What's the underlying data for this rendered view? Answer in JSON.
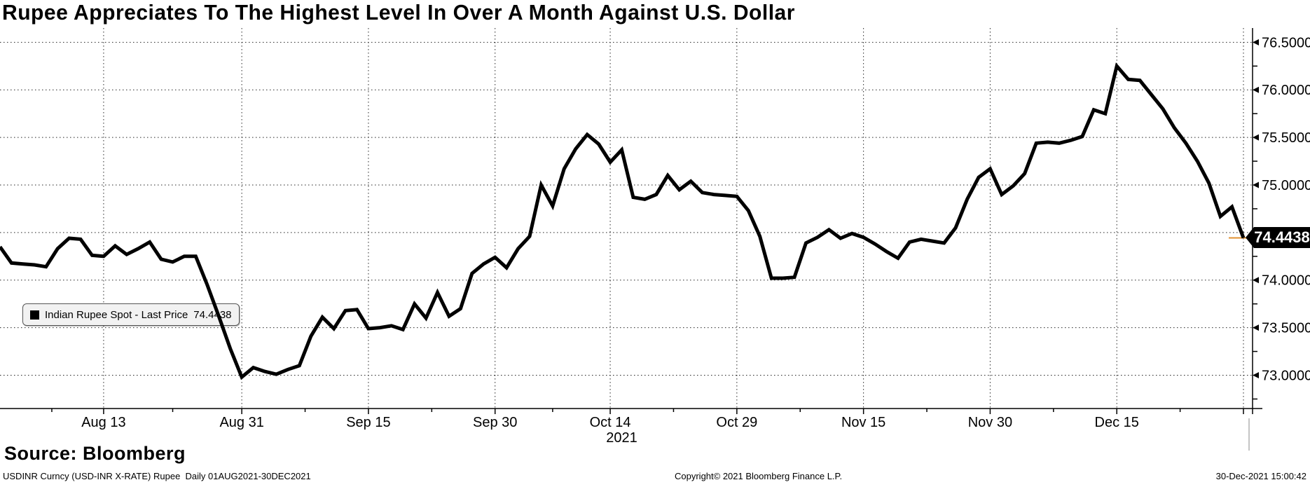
{
  "header": {
    "title": "Rupee Appreciates To The Highest Level In Over A Month Against U.S. Dollar"
  },
  "legend": {
    "label": "Indian Rupee Spot - Last Price",
    "value": "74.4438",
    "swatch_color": "#000000"
  },
  "price_tag": {
    "value": "74.4438",
    "bg": "#000000",
    "fg": "#ffffff",
    "connector_color": "#e09132"
  },
  "source": {
    "label": "Source: Bloomberg"
  },
  "footer": {
    "left": "USDINR Curncy (USD-INR X-RATE) Rupee  Daily 01AUG2021-30DEC2021",
    "center": "Copyright© 2021 Bloomberg Finance L.P.",
    "right": "30-Dec-2021 15:00:42"
  },
  "chart_data": {
    "type": "line",
    "title": "Indian Rupee Spot (USD-INR X-RATE), daily closes 01AUG2021-30DEC2021",
    "series_name": "Indian Rupee Spot - Last Price",
    "line_color": "#000000",
    "grid": "dotted",
    "legend_position": "left-middle",
    "ylim": [
      72.65,
      76.65
    ],
    "y_ticks": [
      73.0,
      73.5,
      74.0,
      74.5,
      75.0,
      75.5,
      76.0,
      76.5
    ],
    "y_minor_ticks": [
      72.75,
      73.25,
      73.75,
      74.25,
      74.75,
      75.25,
      75.75,
      76.25
    ],
    "year_label": "2021",
    "last_price": 74.4438,
    "x_ticks": [
      {
        "label": "Aug 13",
        "index": 9
      },
      {
        "label": "Aug 31",
        "index": 21
      },
      {
        "label": "Sep 15",
        "index": 32
      },
      {
        "label": "Sep 30",
        "index": 43
      },
      {
        "label": "Oct 14",
        "index": 53
      },
      {
        "label": "Oct 29",
        "index": 64
      },
      {
        "label": "Nov 15",
        "index": 75
      },
      {
        "label": "Nov 30",
        "index": 86
      },
      {
        "label": "Dec 15",
        "index": 97
      },
      {
        "label": "",
        "index": 108
      }
    ],
    "x": [
      "Aug 2",
      "Aug 3",
      "Aug 4",
      "Aug 5",
      "Aug 6",
      "Aug 9",
      "Aug 10",
      "Aug 11",
      "Aug 12",
      "Aug 13",
      "Aug 16",
      "Aug 17",
      "Aug 18",
      "Aug 19",
      "Aug 20",
      "Aug 23",
      "Aug 24",
      "Aug 25",
      "Aug 26",
      "Aug 27",
      "Aug 30",
      "Aug 31",
      "Sep 1",
      "Sep 2",
      "Sep 3",
      "Sep 6",
      "Sep 7",
      "Sep 8",
      "Sep 9",
      "Sep 10",
      "Sep 13",
      "Sep 14",
      "Sep 15",
      "Sep 16",
      "Sep 17",
      "Sep 20",
      "Sep 21",
      "Sep 22",
      "Sep 23",
      "Sep 24",
      "Sep 27",
      "Sep 28",
      "Sep 29",
      "Sep 30",
      "Oct 1",
      "Oct 4",
      "Oct 5",
      "Oct 6",
      "Oct 7",
      "Oct 8",
      "Oct 11",
      "Oct 12",
      "Oct 13",
      "Oct 14",
      "Oct 15",
      "Oct 18",
      "Oct 19",
      "Oct 20",
      "Oct 21",
      "Oct 22",
      "Oct 25",
      "Oct 26",
      "Oct 27",
      "Oct 28",
      "Oct 29",
      "Nov 1",
      "Nov 2",
      "Nov 3",
      "Nov 4",
      "Nov 5",
      "Nov 8",
      "Nov 9",
      "Nov 10",
      "Nov 11",
      "Nov 12",
      "Nov 15",
      "Nov 16",
      "Nov 17",
      "Nov 18",
      "Nov 19",
      "Nov 22",
      "Nov 23",
      "Nov 24",
      "Nov 25",
      "Nov 26",
      "Nov 29",
      "Nov 30",
      "Dec 1",
      "Dec 2",
      "Dec 3",
      "Dec 6",
      "Dec 7",
      "Dec 8",
      "Dec 9",
      "Dec 10",
      "Dec 13",
      "Dec 14",
      "Dec 15",
      "Dec 16",
      "Dec 17",
      "Dec 20",
      "Dec 21",
      "Dec 22",
      "Dec 23",
      "Dec 24",
      "Dec 27",
      "Dec 28",
      "Dec 29",
      "Dec 30"
    ],
    "values": [
      74.35,
      74.18,
      74.17,
      74.16,
      74.14,
      74.33,
      74.44,
      74.43,
      74.26,
      74.25,
      74.36,
      74.27,
      74.33,
      74.4,
      74.22,
      74.19,
      74.25,
      74.25,
      73.95,
      73.62,
      73.28,
      72.98,
      73.08,
      73.04,
      73.01,
      73.06,
      73.1,
      73.41,
      73.61,
      73.49,
      73.68,
      73.69,
      73.49,
      73.5,
      73.52,
      73.48,
      73.75,
      73.6,
      73.87,
      73.62,
      73.7,
      74.07,
      74.17,
      74.24,
      74.13,
      74.33,
      74.46,
      75.0,
      74.78,
      75.17,
      75.38,
      75.53,
      75.43,
      75.24,
      75.37,
      74.87,
      74.85,
      74.9,
      75.1,
      74.95,
      75.04,
      74.92,
      74.9,
      74.89,
      74.88,
      74.73,
      74.46,
      74.02,
      74.02,
      74.03,
      74.39,
      74.45,
      74.53,
      74.44,
      74.49,
      74.45,
      74.38,
      74.3,
      74.23,
      74.4,
      74.43,
      74.41,
      74.39,
      74.55,
      74.85,
      75.08,
      75.17,
      74.9,
      74.99,
      75.12,
      75.44,
      75.45,
      75.44,
      75.47,
      75.51,
      75.79,
      75.75,
      76.25,
      76.11,
      76.1,
      75.95,
      75.8,
      75.6,
      75.44,
      75.25,
      75.02,
      74.67,
      74.77,
      74.4438
    ]
  }
}
